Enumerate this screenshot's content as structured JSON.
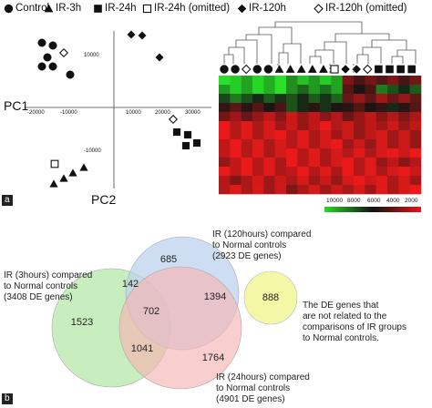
{
  "legend": [
    {
      "marker": "circle-filled",
      "label": "Control"
    },
    {
      "marker": "triangle-filled",
      "label": "IR-3h"
    },
    {
      "marker": "square-filled",
      "label": "IR-24h"
    },
    {
      "marker": "square-open",
      "label": "IR-24h (omitted)"
    },
    {
      "marker": "diamond-filled",
      "label": "IR-120h"
    },
    {
      "marker": "diamond-open",
      "label": "IR-120h (omitted)"
    }
  ],
  "panel_a": {
    "label": "a",
    "pc1_label": "PC1",
    "pc2_label": "PC2",
    "x_ticks": [
      "-20000",
      "-10000",
      "10000",
      "20000",
      "30000"
    ],
    "y_ticks": [
      "10000",
      "-10000"
    ]
  },
  "heatmap": {
    "scale_ticks": [
      "10000",
      "8000",
      "6000",
      "4000",
      "2000"
    ],
    "colors": {
      "low": "#22dd22",
      "mid": "#111111",
      "high": "#ee1111"
    }
  },
  "panel_b": {
    "label": "b",
    "sets": [
      {
        "lines": [
          "IR (3hours) compared",
          "to Normal controls",
          "(3408 DE genes)"
        ],
        "color": "#b6e7a8"
      },
      {
        "lines": [
          "IR (120hours) compared",
          "to Normal controls",
          "(2923 DE genes)"
        ],
        "color": "#bdd3ee"
      },
      {
        "lines": [
          "IR (24hours) compared",
          "to Normal controls",
          "(4901 DE genes)"
        ],
        "color": "#f6b3b3"
      }
    ],
    "regions": {
      "only_120h": "685",
      "3h_and_120h": "142",
      "120h_and_24h": "1394",
      "all_three": "702",
      "only_3h": "1523",
      "3h_and_24h": "1041",
      "only_24h": "1764"
    },
    "other": {
      "count": "888",
      "lines": [
        "The DE genes that",
        "are not related to the",
        "comparisons of IR groups",
        "to Normal controls."
      ],
      "color": "#f4f7a6"
    }
  }
}
